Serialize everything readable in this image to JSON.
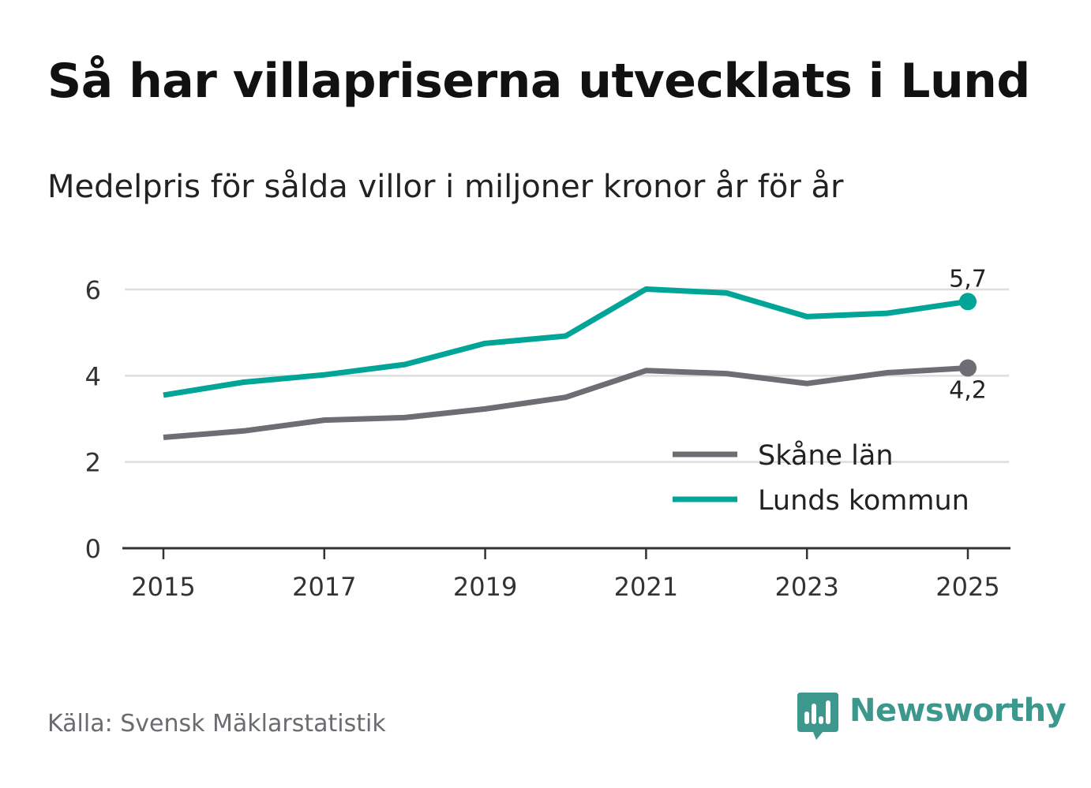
{
  "title": "Så har villapriserna utvecklats i Lund",
  "subtitle": "Medelpris för sålda villor i miljoner kronor år för år",
  "source": "Källa: Svensk Mäklarstatistik",
  "brand": {
    "name": "Newsworthy",
    "icon": "newsworthy-logo-icon",
    "color": "#3c978d"
  },
  "colors": {
    "grid": "#dddddd",
    "axis": "#333333",
    "tick_text": "#333333"
  },
  "chart_data": {
    "type": "line",
    "title": "Så har villapriserna utvecklats i Lund",
    "subtitle": "Medelpris för sålda villor i miljoner kronor år för år",
    "xlabel": "",
    "ylabel": "",
    "x": [
      2015,
      2016,
      2017,
      2018,
      2019,
      2020,
      2021,
      2022,
      2023,
      2024,
      2025
    ],
    "xticks": [
      2015,
      2017,
      2019,
      2021,
      2023,
      2025
    ],
    "xtick_labels": [
      "2015",
      "2017",
      "2019",
      "2021",
      "2023",
      "2025"
    ],
    "xlim": [
      2014.5,
      2025.5
    ],
    "ylim": [
      0,
      6
    ],
    "yticks": [
      0,
      2,
      4,
      6
    ],
    "ytick_labels": [
      "0",
      "2",
      "4",
      "6"
    ],
    "grid": true,
    "legend_position": "bottom-right",
    "series": [
      {
        "name": "Skåne län",
        "color": "#6e6d73",
        "values": [
          2.57,
          2.72,
          2.97,
          3.03,
          3.23,
          3.5,
          4.12,
          4.05,
          3.82,
          4.07,
          4.18
        ],
        "end_label": "4,2",
        "end_label_position": "below"
      },
      {
        "name": "Lunds kommun",
        "color": "#00a597",
        "values": [
          3.55,
          3.85,
          4.02,
          4.26,
          4.75,
          4.92,
          6.01,
          5.92,
          5.37,
          5.45,
          5.72
        ],
        "end_label": "5,7",
        "end_label_position": "above"
      }
    ]
  }
}
